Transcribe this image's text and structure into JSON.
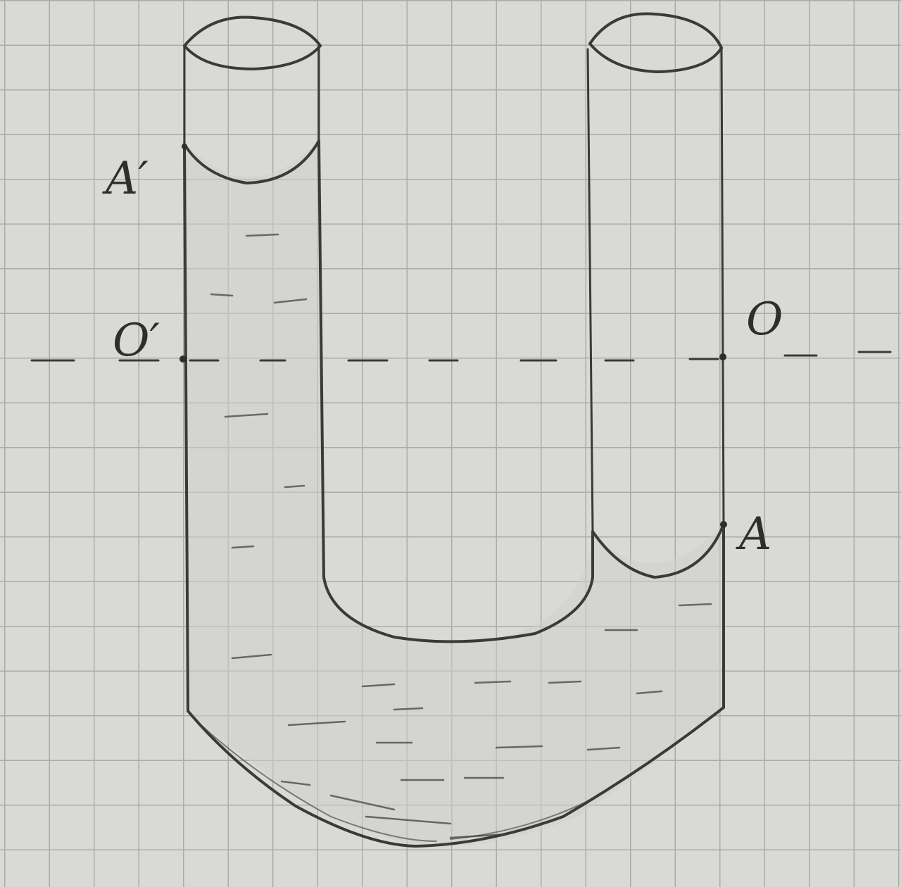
{
  "labels": {
    "A_prime": "A′",
    "O_prime": "O′",
    "O": "O",
    "A": "A"
  }
}
